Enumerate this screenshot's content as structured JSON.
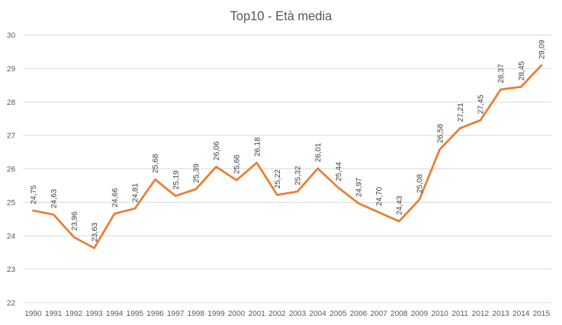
{
  "chart_data": {
    "type": "line",
    "title": "Top10 - Età media",
    "xlabel": "",
    "ylabel": "",
    "categories": [
      "1990",
      "1991",
      "1992",
      "1993",
      "1994",
      "1995",
      "1996",
      "1997",
      "1998",
      "1999",
      "2000",
      "2001",
      "2002",
      "2003",
      "2004",
      "2005",
      "2006",
      "2007",
      "2008",
      "2009",
      "2010",
      "2011",
      "2012",
      "2013",
      "2014",
      "2015"
    ],
    "series": [
      {
        "values": [
          24.75,
          24.63,
          23.96,
          23.63,
          24.66,
          24.81,
          25.68,
          25.19,
          25.39,
          26.06,
          25.66,
          26.18,
          25.22,
          25.32,
          26.01,
          25.44,
          24.97,
          24.7,
          24.43,
          25.08,
          26.58,
          27.21,
          27.45,
          28.37,
          28.45,
          29.09
        ],
        "labels": [
          "24,75",
          "24,63",
          "23,96",
          "23,63",
          "24,66",
          "24,81",
          "25,68",
          "25,19",
          "25,39",
          "26,06",
          "25,66",
          "26,18",
          "25,22",
          "25,32",
          "26,01",
          "25,44",
          "24,97",
          "24,70",
          "24,43",
          "25,08",
          "26,58",
          "27,21",
          "27,45",
          "28,37",
          "28,45",
          "29,09"
        ],
        "color": "#ED7D31"
      }
    ],
    "ylim": [
      22,
      30
    ],
    "yticks": [
      "22",
      "23",
      "24",
      "25",
      "26",
      "27",
      "28",
      "29",
      "30"
    ],
    "grid": true,
    "legend": "none",
    "gridColor": "#D9D9D9",
    "textColor": "#595959"
  }
}
